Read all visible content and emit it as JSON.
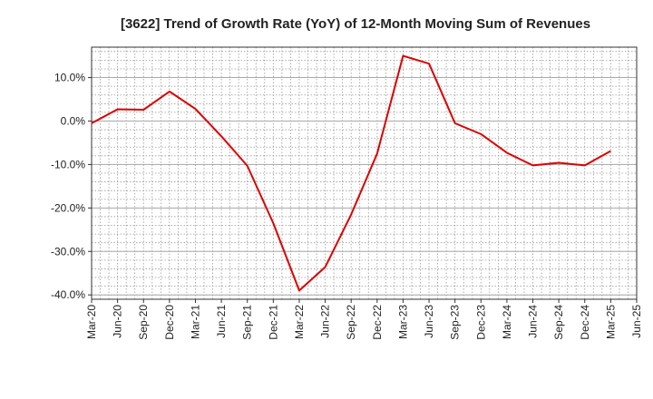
{
  "chart_data": {
    "type": "line",
    "title": "[3622]  Trend of Growth Rate (YoY) of 12-Month Moving Sum of Revenues",
    "xlabel": "",
    "ylabel": "",
    "x": [
      "Mar-20",
      "Jun-20",
      "Sep-20",
      "Dec-20",
      "Mar-21",
      "Jun-21",
      "Sep-21",
      "Dec-21",
      "Mar-22",
      "Jun-22",
      "Sep-22",
      "Dec-22",
      "Mar-23",
      "Jun-23",
      "Sep-23",
      "Dec-23",
      "Mar-24",
      "Jun-24",
      "Sep-24",
      "Dec-24",
      "Mar-25",
      "Jun-25"
    ],
    "series": [
      {
        "name": "",
        "color": "#dd0000",
        "values": [
          -0.5,
          2.7,
          2.6,
          6.8,
          2.8,
          -3.5,
          -10.3,
          -23.5,
          -39.0,
          -33.6,
          -21.5,
          -7.5,
          15.0,
          13.2,
          -0.5,
          -3.0,
          -7.3,
          -10.2,
          -9.6,
          -10.2,
          -6.9,
          null
        ]
      }
    ],
    "yticks": [
      10,
      0,
      -10,
      -20,
      -30,
      -40
    ],
    "ytick_labels": [
      "10.0%",
      "0.0%",
      "-10.0%",
      "-20.0%",
      "-30.0%",
      "-40.0%"
    ],
    "ylim": [
      -41,
      17
    ],
    "grid": true,
    "legend": "none"
  }
}
